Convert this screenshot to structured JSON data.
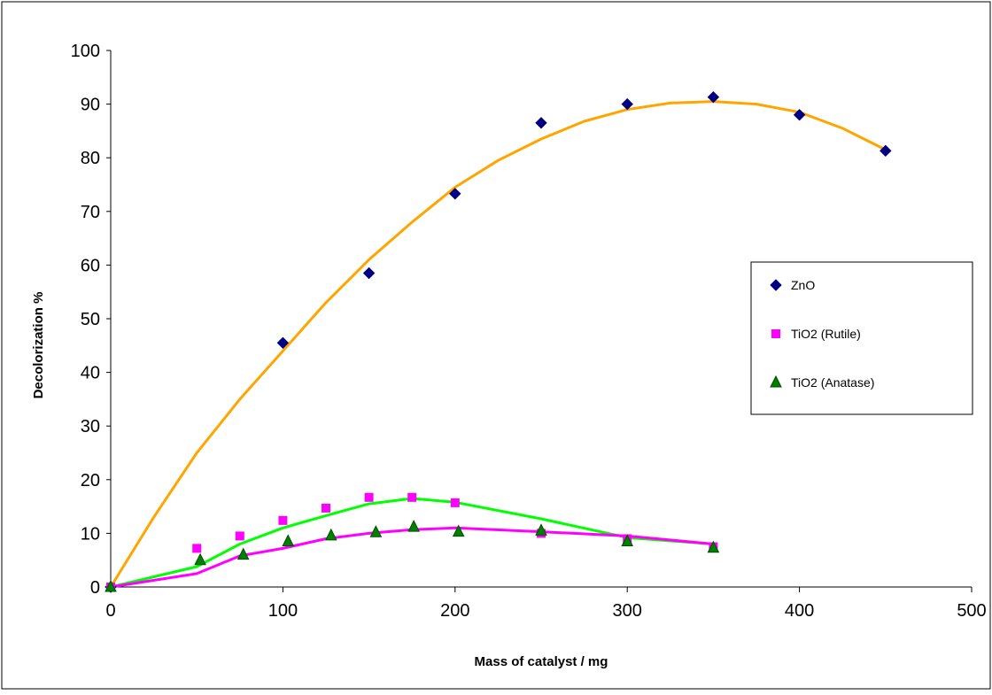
{
  "chart_data": {
    "type": "scatter",
    "title": "",
    "xlabel": "Mass of catalyst / mg",
    "ylabel": "Decolorization %",
    "xlim": [
      0,
      500
    ],
    "ylim": [
      0,
      100
    ],
    "xticks": [
      0,
      100,
      200,
      300,
      400,
      500
    ],
    "yticks": [
      0,
      10,
      20,
      30,
      40,
      50,
      60,
      70,
      80,
      90,
      100
    ],
    "grid": false,
    "legend_position": "right",
    "series": [
      {
        "name": "ZnO",
        "marker": "diamond",
        "color": "#000080",
        "points": [
          [
            0,
            0
          ],
          [
            100,
            45.5
          ],
          [
            150,
            58.5
          ],
          [
            200,
            73.3
          ],
          [
            250,
            86.5
          ],
          [
            300,
            90.0
          ],
          [
            350,
            91.3
          ],
          [
            400,
            88.0
          ],
          [
            450,
            81.3
          ]
        ],
        "trend_color": "#ffa500",
        "trend": [
          [
            0,
            0
          ],
          [
            25,
            13
          ],
          [
            50,
            25
          ],
          [
            75,
            35
          ],
          [
            100,
            44
          ],
          [
            125,
            53
          ],
          [
            150,
            61
          ],
          [
            175,
            68
          ],
          [
            200,
            74.5
          ],
          [
            225,
            79.5
          ],
          [
            250,
            83.5
          ],
          [
            275,
            86.8
          ],
          [
            300,
            89
          ],
          [
            325,
            90.2
          ],
          [
            350,
            90.5
          ],
          [
            375,
            90
          ],
          [
            400,
            88.5
          ],
          [
            425,
            85.5
          ],
          [
            450,
            81.5
          ]
        ]
      },
      {
        "name": "TiO2 (Rutile)",
        "marker": "square",
        "color": "#ff00ff",
        "points": [
          [
            0,
            0
          ],
          [
            50,
            7.2
          ],
          [
            75,
            9.5
          ],
          [
            100,
            12.4
          ],
          [
            125,
            14.7
          ],
          [
            150,
            16.7
          ],
          [
            175,
            16.7
          ],
          [
            200,
            15.7
          ],
          [
            250,
            10.0
          ],
          [
            300,
            9.0
          ],
          [
            350,
            7.5
          ]
        ],
        "trend_color": "#ff00ff",
        "trend": [
          [
            0,
            0
          ],
          [
            50,
            2.5
          ],
          [
            75,
            5.8
          ],
          [
            100,
            7.2
          ],
          [
            125,
            9
          ],
          [
            150,
            10
          ],
          [
            175,
            10.7
          ],
          [
            200,
            11
          ],
          [
            250,
            10.3
          ],
          [
            300,
            9.5
          ],
          [
            350,
            8
          ]
        ]
      },
      {
        "name": "TiO2 (Anatase)",
        "marker": "triangle",
        "color": "#008000",
        "points": [
          [
            0,
            0
          ],
          [
            52,
            5.0
          ],
          [
            77,
            6.0
          ],
          [
            103,
            8.5
          ],
          [
            128,
            9.6
          ],
          [
            154,
            10.2
          ],
          [
            176,
            11.2
          ],
          [
            202,
            10.3
          ],
          [
            250,
            10.5
          ],
          [
            300,
            8.5
          ],
          [
            350,
            7.3
          ]
        ],
        "trend_color": "#00ff00",
        "trend": [
          [
            0,
            0
          ],
          [
            50,
            3.8
          ],
          [
            75,
            8
          ],
          [
            100,
            11
          ],
          [
            125,
            13.3
          ],
          [
            150,
            15.5
          ],
          [
            175,
            16.5
          ],
          [
            200,
            15.8
          ],
          [
            250,
            12.7
          ],
          [
            300,
            9.2
          ],
          [
            350,
            8
          ]
        ]
      }
    ]
  }
}
